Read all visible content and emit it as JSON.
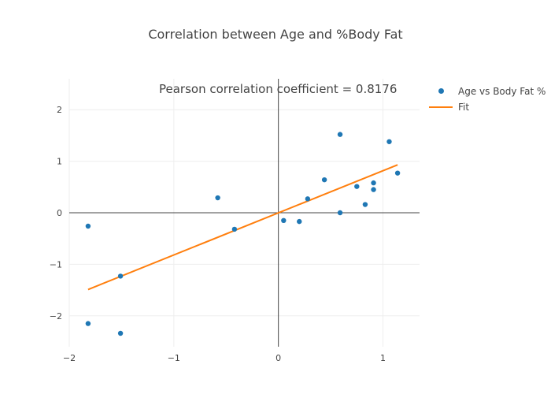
{
  "chart_data": {
    "type": "scatter",
    "title": "Correlation between Age and %Body Fat",
    "annotation": "Pearson correlation coefficient  = 0.8176",
    "xlabel": "",
    "ylabel": "",
    "xlim": [
      -2.0,
      1.35
    ],
    "ylim": [
      -2.6,
      2.6
    ],
    "x_ticks": [
      -2,
      -1,
      0,
      1
    ],
    "y_ticks": [
      -2,
      -1,
      0,
      1,
      2
    ],
    "x_tick_labels": [
      "−2",
      "−1",
      "0",
      "1"
    ],
    "y_tick_labels": [
      "−2",
      "−1",
      "0",
      "1",
      "2"
    ],
    "grid": true,
    "legend_position": "top-right",
    "series": [
      {
        "name": "Age vs Body Fat %",
        "mode": "markers",
        "color": "#1f77b4",
        "points": [
          [
            -1.82,
            -0.26
          ],
          [
            -1.82,
            -2.15
          ],
          [
            -1.51,
            -1.23
          ],
          [
            -1.51,
            -2.34
          ],
          [
            -0.58,
            0.29
          ],
          [
            -0.42,
            -0.32
          ],
          [
            0.05,
            -0.15
          ],
          [
            0.2,
            -0.17
          ],
          [
            0.28,
            0.27
          ],
          [
            0.44,
            0.64
          ],
          [
            0.59,
            1.52
          ],
          [
            0.59,
            0.0
          ],
          [
            0.75,
            0.51
          ],
          [
            0.83,
            0.16
          ],
          [
            0.91,
            0.45
          ],
          [
            0.91,
            0.58
          ],
          [
            1.06,
            1.38
          ],
          [
            1.14,
            0.77
          ]
        ]
      },
      {
        "name": "Fit",
        "mode": "line",
        "color": "#ff7f0e",
        "points": [
          [
            -1.82,
            -1.49
          ],
          [
            1.14,
            0.93
          ]
        ]
      }
    ]
  }
}
